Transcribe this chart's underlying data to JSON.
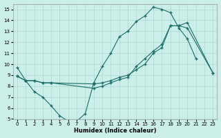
{
  "xlabel": "Humidex (Indice chaleur)",
  "bg_color": "#cceee8",
  "grid_color": "#aad8d0",
  "line_color": "#1a6e6a",
  "xlim": [
    -0.5,
    23.5
  ],
  "ylim": [
    5,
    15.5
  ],
  "xticks": [
    0,
    1,
    2,
    3,
    4,
    5,
    6,
    7,
    8,
    9,
    10,
    11,
    12,
    13,
    14,
    15,
    16,
    17,
    18,
    19,
    20,
    21,
    22,
    23
  ],
  "yticks": [
    5,
    6,
    7,
    8,
    9,
    10,
    11,
    12,
    13,
    14,
    15
  ],
  "s1x": [
    0,
    1,
    2,
    3,
    4,
    5,
    6,
    7,
    8,
    9,
    10,
    11,
    12,
    13,
    14,
    15,
    16,
    17,
    18,
    19,
    20,
    21
  ],
  "s1y": [
    9.7,
    8.5,
    7.5,
    7.0,
    6.2,
    5.3,
    4.8,
    4.8,
    5.5,
    8.3,
    9.8,
    11.0,
    12.5,
    13.0,
    13.9,
    14.4,
    15.2,
    15.0,
    14.7,
    13.3,
    12.3,
    10.5
  ],
  "s2x": [
    0,
    1,
    2,
    3,
    4,
    9,
    10,
    11,
    12,
    13,
    14,
    15,
    16,
    17,
    18,
    19,
    20,
    23
  ],
  "s2y": [
    8.9,
    8.5,
    8.5,
    8.3,
    8.3,
    8.2,
    8.3,
    8.5,
    8.8,
    9.0,
    9.5,
    10.0,
    11.0,
    11.5,
    13.5,
    13.5,
    13.8,
    9.2
  ],
  "s3x": [
    0,
    1,
    2,
    3,
    4,
    9,
    10,
    11,
    12,
    13,
    14,
    15,
    16,
    17,
    18,
    19,
    20,
    23
  ],
  "s3y": [
    8.9,
    8.5,
    8.5,
    8.3,
    8.3,
    7.8,
    8.0,
    8.3,
    8.6,
    8.8,
    9.8,
    10.5,
    11.2,
    11.8,
    13.5,
    13.5,
    13.3,
    9.2
  ]
}
